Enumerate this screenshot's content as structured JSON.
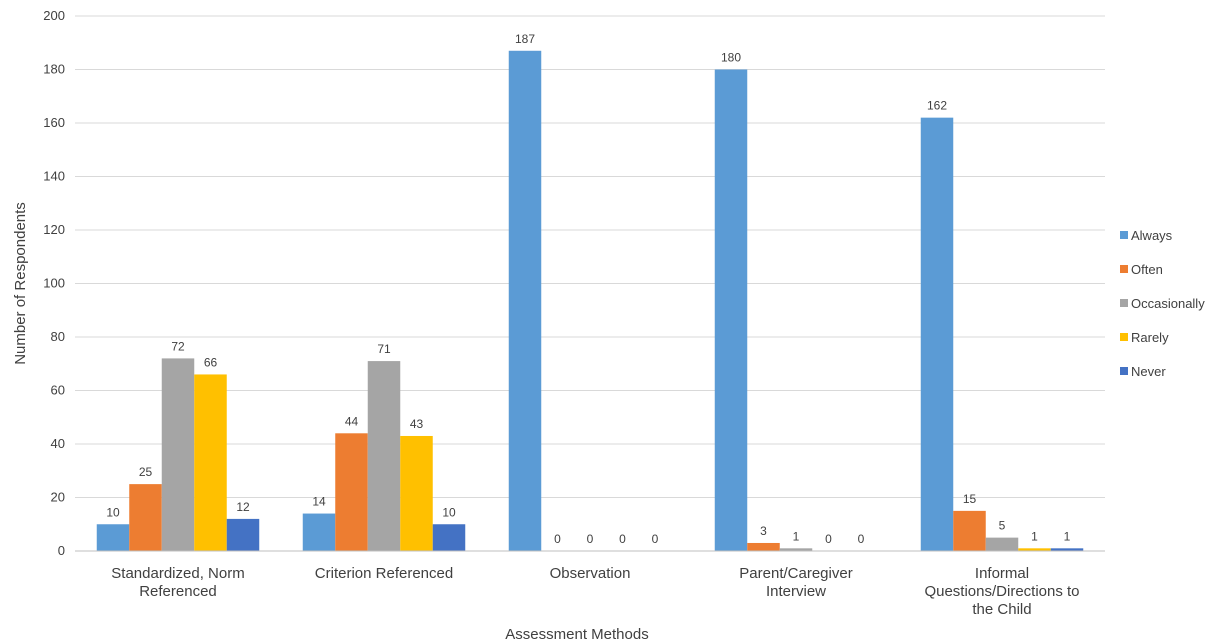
{
  "chart_data": {
    "type": "bar",
    "title": "",
    "xlabel": "Assessment Methods",
    "ylabel": "Number of Respondents",
    "ylim": [
      0,
      200
    ],
    "yticks": [
      0,
      20,
      40,
      60,
      80,
      100,
      120,
      140,
      160,
      180,
      200
    ],
    "grid": true,
    "legend_position": "right",
    "categories": [
      [
        "Standardized, Norm",
        "Referenced"
      ],
      [
        "Criterion Referenced"
      ],
      [
        "Observation"
      ],
      [
        "Parent/Caregiver",
        "Interview"
      ],
      [
        "Informal",
        "Questions/Directions to",
        "the Child"
      ]
    ],
    "series": [
      {
        "name": "Always",
        "color": "#5B9BD5",
        "values": [
          10,
          14,
          187,
          180,
          162
        ]
      },
      {
        "name": "Often",
        "color": "#ED7D31",
        "values": [
          25,
          44,
          0,
          3,
          15
        ]
      },
      {
        "name": "Occasionally",
        "color": "#A5A5A5",
        "values": [
          72,
          71,
          0,
          1,
          5
        ]
      },
      {
        "name": "Rarely",
        "color": "#FFC000",
        "values": [
          66,
          43,
          0,
          0,
          1
        ]
      },
      {
        "name": "Never",
        "color": "#4472C4",
        "values": [
          12,
          10,
          0,
          0,
          1
        ]
      }
    ]
  }
}
